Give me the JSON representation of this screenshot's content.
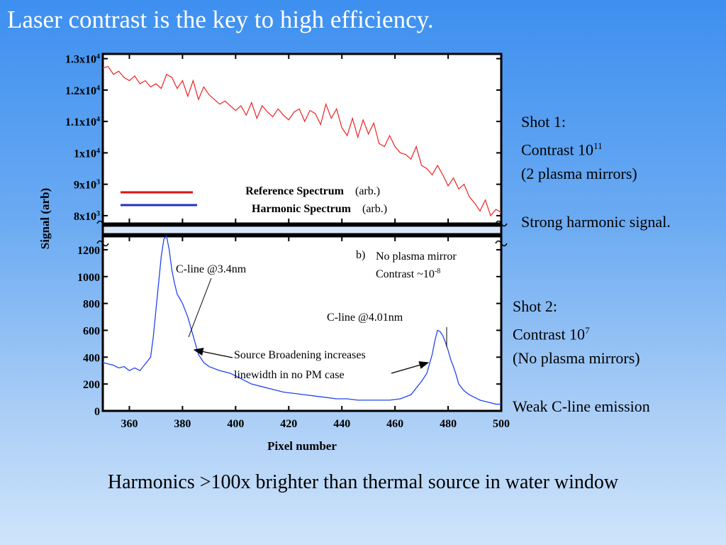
{
  "title": "Laser contrast is the key to high efficiency.",
  "shot1": {
    "label": "Shot 1:",
    "contrast_prefix": "Contrast 10",
    "contrast_exp": "11",
    "plasma_note": "(2 plasma mirrors)",
    "result": "Strong harmonic signal."
  },
  "shot2": {
    "label": "Shot 2:",
    "contrast_prefix": "Contrast 10",
    "contrast_exp": "7",
    "plasma_note": "(No plasma mirrors)",
    "result": "Weak C-line emission"
  },
  "bottom_caption": "Harmonics >100x brighter than thermal source in water window",
  "colors": {
    "reference": "#ee2222",
    "harmonic": "#2244ee",
    "legend_reference": "#dd1111",
    "legend_harmonic": "#2233bb"
  },
  "chart_data": [
    {
      "type": "line",
      "panel": "upper",
      "ylabel": "Signal (arb)",
      "xlim": [
        350,
        500
      ],
      "ylim": [
        7750,
        13150
      ],
      "y_ticks": [
        {
          "value": 13000,
          "base": "1.3x10",
          "exp": "4"
        },
        {
          "value": 12000,
          "base": "1.2x10",
          "exp": "4"
        },
        {
          "value": 11000,
          "base": "1.1x10",
          "exp": "4"
        },
        {
          "value": 10000,
          "base": "1x10",
          "exp": "4"
        },
        {
          "value": 9000,
          "base": "9x10",
          "exp": "3"
        },
        {
          "value": 8000,
          "base": "8x10",
          "exp": "3"
        }
      ],
      "legend": [
        {
          "name": "Reference Spectrum",
          "unit": "(arb.)"
        },
        {
          "name": "Harmonic Spectrum",
          "unit": "(arb.)"
        }
      ],
      "series": [
        {
          "name": "Reference Spectrum",
          "x": [
            350,
            352,
            354,
            356,
            358,
            360,
            362,
            364,
            366,
            368,
            370,
            372,
            374,
            376,
            378,
            380,
            382,
            384,
            386,
            388,
            390,
            392,
            394,
            396,
            398,
            400,
            402,
            404,
            406,
            408,
            410,
            412,
            414,
            416,
            418,
            420,
            422,
            424,
            426,
            428,
            430,
            432,
            434,
            436,
            438,
            440,
            442,
            444,
            446,
            448,
            450,
            452,
            454,
            456,
            458,
            460,
            462,
            464,
            466,
            468,
            470,
            472,
            474,
            476,
            478,
            480,
            482,
            484,
            486,
            488,
            490,
            492,
            494,
            496,
            498,
            500
          ],
          "y": [
            12700,
            12750,
            12500,
            12600,
            12400,
            12300,
            12450,
            12200,
            12300,
            12100,
            12200,
            12050,
            12500,
            12400,
            12050,
            12300,
            11800,
            12300,
            11700,
            12100,
            11850,
            11700,
            11550,
            11650,
            11500,
            11350,
            11500,
            11200,
            11600,
            11100,
            11500,
            11300,
            11150,
            11400,
            11200,
            11050,
            11300,
            11400,
            11000,
            11350,
            11250,
            10900,
            11550,
            11100,
            11400,
            10800,
            10550,
            11100,
            10500,
            11050,
            10600,
            10950,
            10300,
            10200,
            10550,
            10200,
            10000,
            9950,
            9800,
            10200,
            9600,
            9500,
            9300,
            9600,
            9300,
            8950,
            9200,
            8850,
            9000,
            8600,
            8400,
            8150,
            8500,
            8000,
            8200,
            8100
          ]
        }
      ]
    },
    {
      "type": "line",
      "panel": "lower",
      "xlabel": "Pixel number",
      "ylabel": "Signal (arb)",
      "xlim": [
        350,
        500
      ],
      "ylim": [
        0,
        1300
      ],
      "x_ticks": [
        360,
        380,
        400,
        420,
        440,
        460,
        480,
        500
      ],
      "y_ticks": [
        0,
        200,
        400,
        600,
        800,
        1000,
        1200
      ],
      "panel_label": "b)",
      "panel_note_line1": "No plasma mirror",
      "panel_note_line2_prefix": "Contrast ~10",
      "panel_note_line2_exp": "-8",
      "annotations": [
        {
          "text": "C-line @3.4nm",
          "x": 376,
          "y": 1180
        },
        {
          "text": "C-line @4.01nm",
          "x": 463,
          "y": 770
        },
        {
          "line1": "Source Broadening increases",
          "line2": "linewidth in no PM case",
          "x": 398,
          "y": 460
        }
      ],
      "series": [
        {
          "name": "Harmonic Spectrum",
          "x": [
            350,
            352,
            354,
            356,
            358,
            360,
            362,
            364,
            366,
            368,
            369,
            370,
            371,
            372,
            373,
            374,
            375,
            376,
            377,
            378,
            380,
            382,
            384,
            386,
            388,
            390,
            394,
            398,
            402,
            406,
            410,
            414,
            418,
            422,
            426,
            430,
            434,
            438,
            442,
            446,
            450,
            454,
            458,
            462,
            466,
            468,
            470,
            472,
            474,
            475,
            476,
            477,
            478,
            479,
            480,
            481,
            482,
            483,
            484,
            486,
            488,
            490,
            492,
            494,
            496,
            498,
            500
          ],
          "y": [
            360,
            350,
            340,
            320,
            330,
            300,
            320,
            300,
            350,
            400,
            550,
            750,
            950,
            1150,
            1280,
            1300,
            1200,
            1050,
            950,
            870,
            800,
            700,
            560,
            420,
            360,
            330,
            300,
            280,
            240,
            200,
            180,
            160,
            140,
            130,
            120,
            110,
            100,
            90,
            90,
            80,
            80,
            80,
            80,
            90,
            120,
            170,
            220,
            280,
            420,
            520,
            600,
            590,
            560,
            510,
            450,
            380,
            330,
            270,
            200,
            150,
            120,
            100,
            80,
            70,
            60,
            50,
            50
          ]
        }
      ]
    }
  ]
}
